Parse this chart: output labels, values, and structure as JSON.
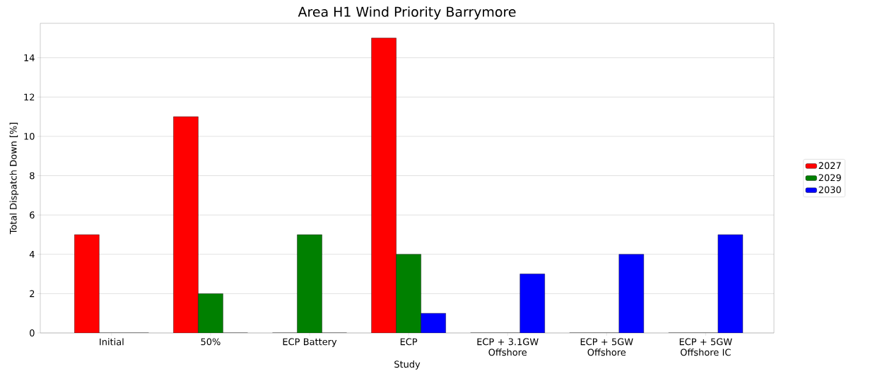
{
  "chart_data": {
    "type": "bar",
    "title": "Area H1 Wind Priority Barrymore",
    "xlabel": "Study",
    "ylabel": "Total Dispatch Down [%]",
    "categories": [
      "Initial",
      "50%",
      "ECP Battery",
      "ECP",
      "ECP + 3.1GW Offshore",
      "ECP + 5GW Offshore",
      "ECP + 5GW Offshore IC"
    ],
    "series": [
      {
        "name": "2027",
        "color": "#ff0000",
        "values": [
          5,
          11,
          0,
          15,
          0,
          0,
          0
        ]
      },
      {
        "name": "2029",
        "color": "#008000",
        "values": [
          0,
          2,
          5,
          4,
          0,
          0,
          0
        ]
      },
      {
        "name": "2030",
        "color": "#0000ff",
        "values": [
          0,
          0,
          0,
          1,
          3,
          4,
          5
        ]
      }
    ],
    "ylim": [
      0,
      15.75
    ],
    "yticks": [
      0,
      2,
      4,
      6,
      8,
      10,
      12,
      14
    ],
    "grid": "y",
    "legend": "right"
  }
}
